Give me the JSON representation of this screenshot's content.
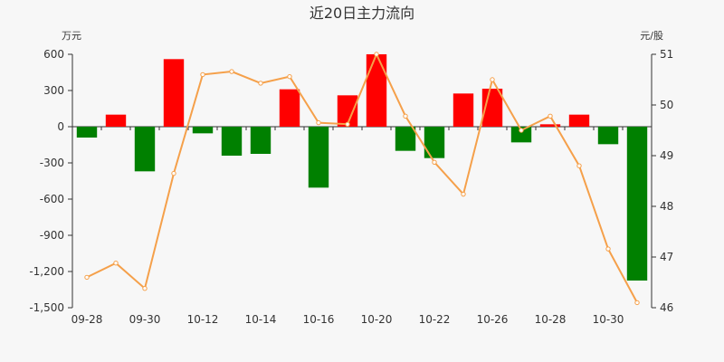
{
  "chart_data": {
    "type": "bar+line",
    "title": "近20日主力流向",
    "y_left_unit": "万元",
    "y_right_unit": "元/股",
    "y_left_ticks": [
      600,
      300,
      0,
      -300,
      -600,
      -900,
      -1200,
      -1500
    ],
    "y_left_tick_labels": [
      "600",
      "300",
      "0",
      "-300",
      "-600",
      "-900",
      "-1,200",
      "-1,500"
    ],
    "y_left_lim": [
      -1500,
      600
    ],
    "y_right_ticks": [
      51,
      50,
      49,
      48,
      47,
      46
    ],
    "y_right_lim": [
      46,
      51
    ],
    "x_tick_labels": [
      "09-28",
      "09-30",
      "10-12",
      "10-14",
      "10-16",
      "10-20",
      "10-22",
      "10-26",
      "10-28",
      "10-30"
    ],
    "x_tick_label_positions": [
      0,
      2,
      4,
      6,
      8,
      10,
      12,
      14,
      16,
      18
    ],
    "n_points": 20,
    "bar_values": [
      -90,
      100,
      -370,
      560,
      -55,
      -240,
      -225,
      310,
      -505,
      260,
      600,
      -200,
      -260,
      275,
      315,
      -130,
      20,
      100,
      -145,
      -1275
    ],
    "line_values": [
      46.6,
      46.88,
      46.38,
      48.65,
      50.6,
      50.66,
      50.43,
      50.56,
      49.65,
      49.62,
      51.0,
      49.78,
      48.87,
      48.24,
      50.5,
      49.5,
      49.78,
      48.8,
      47.16,
      46.1
    ],
    "colors": {
      "positive_bar": "#ff0000",
      "negative_bar": "#008000",
      "line": "#f5a04a",
      "axis": "#333333",
      "background": "#f7f7f7"
    },
    "grid": false,
    "legend": "none"
  }
}
